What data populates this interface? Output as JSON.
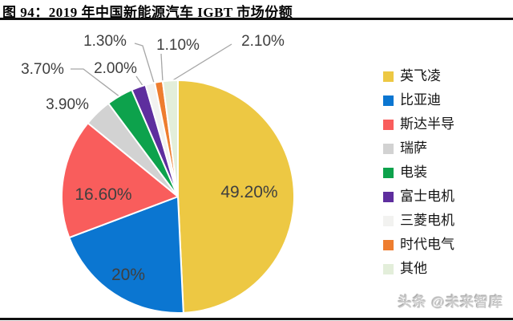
{
  "header": {
    "title": "图 94：2019 年中国新能源汽车 IGBT 市场份额"
  },
  "watermark": {
    "text": "头条 @未来智库"
  },
  "chart_data": {
    "type": "pie",
    "title": "2019 年中国新能源汽车 IGBT 市场份额",
    "categories": [
      "英飞凌",
      "比亚迪",
      "斯达半导",
      "瑞萨",
      "电装",
      "富士电机",
      "三菱电机",
      "时代电气",
      "其他"
    ],
    "values": [
      49.2,
      20,
      16.6,
      3.9,
      3.7,
      2.0,
      1.3,
      1.1,
      2.1
    ],
    "display_labels": [
      "49.20%",
      "20%",
      "16.60%",
      "3.90%",
      "3.70%",
      "2.00%",
      "1.30%",
      "1.10%",
      "2.10%"
    ],
    "colors": [
      "#EDC843",
      "#0B76D1",
      "#F95D5C",
      "#D2D2D2",
      "#0DA24C",
      "#5E2E9E",
      "#F2F2F0",
      "#EE7D2F",
      "#E3EEDA"
    ],
    "legend_position": "right",
    "start_angle_deg": 0,
    "direction": "clockwise",
    "label_color": "#3F3F3F",
    "leader_color": "#A6A6A6",
    "slice_border_color": "#FFFFFF"
  }
}
